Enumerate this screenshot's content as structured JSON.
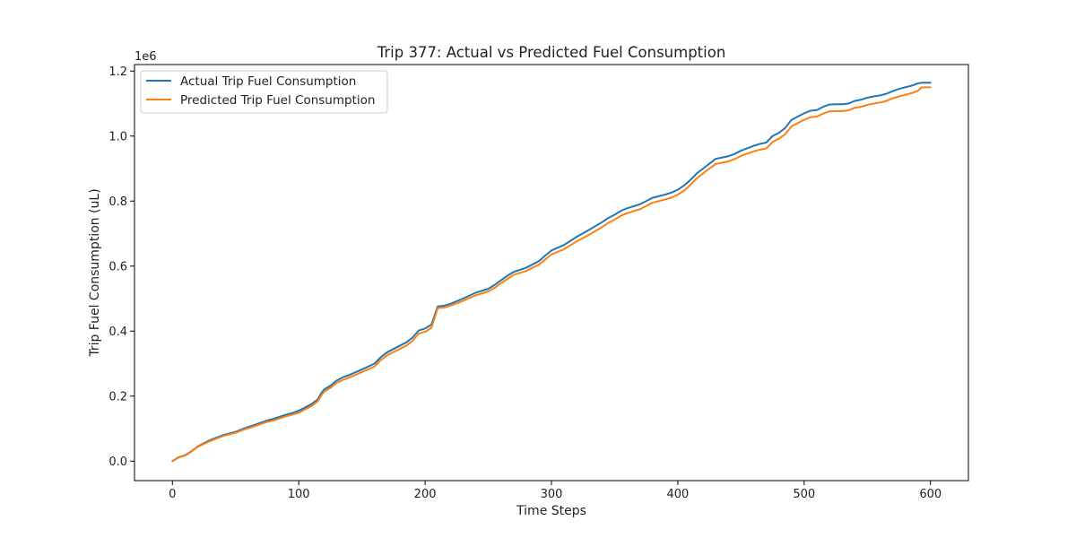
{
  "chart_data": {
    "type": "line",
    "title": "Trip 377: Actual vs Predicted Fuel Consumption",
    "xlabel": "Time Steps",
    "ylabel": "Trip Fuel Consumption (uL)",
    "y_offset_label": "1e6",
    "xlim": [
      -30,
      630
    ],
    "ylim": [
      -0.06,
      1.22
    ],
    "x_ticks": [
      0,
      100,
      200,
      300,
      400,
      500,
      600
    ],
    "x_tick_labels": [
      "0",
      "100",
      "200",
      "300",
      "400",
      "500",
      "600"
    ],
    "y_ticks": [
      0.0,
      0.2,
      0.4,
      0.6,
      0.8,
      1.0,
      1.2
    ],
    "y_tick_labels": [
      "0.0",
      "0.2",
      "0.4",
      "0.6",
      "0.8",
      "1.0",
      "1.2"
    ],
    "grid": false,
    "legend_position": "upper-left",
    "series": [
      {
        "name": "Actual Trip Fuel Consumption",
        "color": "#1f77b4",
        "x": [
          0,
          5,
          10,
          15,
          20,
          25,
          30,
          40,
          50,
          55,
          60,
          70,
          75,
          80,
          90,
          95,
          100,
          110,
          115,
          118,
          120,
          125,
          130,
          135,
          140,
          150,
          160,
          165,
          170,
          180,
          185,
          190,
          195,
          200,
          205,
          210,
          215,
          220,
          230,
          240,
          250,
          255,
          260,
          265,
          270,
          280,
          285,
          290,
          295,
          300,
          310,
          320,
          330,
          340,
          345,
          350,
          355,
          360,
          370,
          375,
          380,
          390,
          395,
          400,
          405,
          410,
          415,
          420,
          425,
          430,
          440,
          445,
          450,
          460,
          465,
          470,
          475,
          480,
          485,
          490,
          495,
          500,
          505,
          510,
          515,
          520,
          525,
          530,
          535,
          540,
          545,
          550,
          555,
          560,
          565,
          570,
          575,
          580,
          585,
          590,
          593,
          600
        ],
        "y": [
          0.0,
          0.012,
          0.018,
          0.03,
          0.045,
          0.055,
          0.065,
          0.08,
          0.09,
          0.098,
          0.105,
          0.118,
          0.125,
          0.13,
          0.143,
          0.148,
          0.155,
          0.175,
          0.19,
          0.21,
          0.22,
          0.232,
          0.248,
          0.258,
          0.265,
          0.282,
          0.3,
          0.32,
          0.335,
          0.355,
          0.365,
          0.38,
          0.402,
          0.408,
          0.42,
          0.476,
          0.478,
          0.484,
          0.5,
          0.518,
          0.53,
          0.542,
          0.556,
          0.57,
          0.582,
          0.595,
          0.605,
          0.615,
          0.632,
          0.648,
          0.665,
          0.69,
          0.712,
          0.735,
          0.748,
          0.758,
          0.77,
          0.778,
          0.79,
          0.8,
          0.81,
          0.82,
          0.826,
          0.835,
          0.848,
          0.865,
          0.885,
          0.9,
          0.915,
          0.93,
          0.938,
          0.945,
          0.955,
          0.97,
          0.976,
          0.98,
          1.0,
          1.01,
          1.025,
          1.05,
          1.06,
          1.07,
          1.078,
          1.08,
          1.09,
          1.097,
          1.098,
          1.098,
          1.1,
          1.108,
          1.112,
          1.118,
          1.122,
          1.125,
          1.13,
          1.138,
          1.145,
          1.15,
          1.155,
          1.162,
          1.164,
          1.164
        ]
      },
      {
        "name": "Predicted Trip Fuel Consumption",
        "color": "#ff7f0e",
        "x": [
          0,
          5,
          10,
          15,
          20,
          25,
          30,
          40,
          50,
          55,
          60,
          70,
          75,
          80,
          90,
          95,
          100,
          110,
          115,
          118,
          120,
          125,
          130,
          135,
          140,
          150,
          160,
          165,
          170,
          180,
          185,
          190,
          195,
          200,
          205,
          210,
          215,
          220,
          230,
          240,
          250,
          255,
          260,
          265,
          270,
          280,
          285,
          290,
          295,
          300,
          310,
          320,
          330,
          340,
          345,
          350,
          355,
          360,
          370,
          375,
          380,
          390,
          395,
          400,
          405,
          410,
          415,
          420,
          425,
          430,
          440,
          445,
          450,
          460,
          465,
          470,
          475,
          480,
          485,
          490,
          495,
          500,
          505,
          510,
          515,
          520,
          525,
          530,
          535,
          540,
          545,
          550,
          555,
          560,
          565,
          570,
          575,
          580,
          585,
          590,
          593,
          600
        ],
        "y": [
          0.0,
          0.011,
          0.017,
          0.029,
          0.044,
          0.053,
          0.062,
          0.077,
          0.087,
          0.095,
          0.101,
          0.114,
          0.121,
          0.125,
          0.138,
          0.143,
          0.149,
          0.169,
          0.184,
          0.203,
          0.213,
          0.225,
          0.241,
          0.25,
          0.257,
          0.274,
          0.291,
          0.311,
          0.326,
          0.345,
          0.355,
          0.37,
          0.392,
          0.398,
          0.41,
          0.471,
          0.472,
          0.478,
          0.493,
          0.51,
          0.522,
          0.533,
          0.547,
          0.56,
          0.573,
          0.585,
          0.595,
          0.604,
          0.62,
          0.636,
          0.652,
          0.676,
          0.697,
          0.72,
          0.733,
          0.743,
          0.755,
          0.763,
          0.775,
          0.785,
          0.795,
          0.805,
          0.811,
          0.82,
          0.832,
          0.85,
          0.87,
          0.885,
          0.9,
          0.914,
          0.922,
          0.929,
          0.939,
          0.953,
          0.958,
          0.962,
          0.982,
          0.992,
          1.006,
          1.03,
          1.04,
          1.05,
          1.058,
          1.06,
          1.069,
          1.076,
          1.077,
          1.077,
          1.079,
          1.087,
          1.09,
          1.096,
          1.1,
          1.103,
          1.108,
          1.116,
          1.122,
          1.127,
          1.132,
          1.139,
          1.15,
          1.15
        ]
      }
    ]
  }
}
